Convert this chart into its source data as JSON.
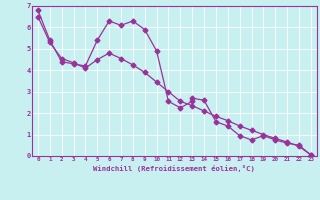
{
  "xlabel": "Windchill (Refroidissement éolien,°C)",
  "bg_color": "#c8f0f0",
  "line_color": "#993399",
  "spine_color": "#993399",
  "grid_color": "#aadddd",
  "xlim": [
    -0.5,
    23.5
  ],
  "ylim": [
    0,
    7
  ],
  "xticks": [
    0,
    1,
    2,
    3,
    4,
    5,
    6,
    7,
    8,
    9,
    10,
    11,
    12,
    13,
    14,
    15,
    16,
    17,
    18,
    19,
    20,
    21,
    22,
    23
  ],
  "yticks": [
    0,
    1,
    2,
    3,
    4,
    5,
    6,
    7
  ],
  "line1_x": [
    0,
    1,
    2,
    3,
    4,
    5,
    6,
    7,
    8,
    9,
    10,
    11,
    12,
    13
  ],
  "line1_y": [
    6.8,
    5.4,
    4.4,
    4.3,
    4.2,
    5.4,
    6.3,
    6.1,
    6.3,
    5.9,
    4.9,
    2.55,
    2.25,
    2.55
  ],
  "line2_x": [
    0,
    1,
    2,
    3,
    4,
    5,
    6,
    7,
    8,
    9,
    10,
    11,
    12,
    13,
    14,
    15,
    16,
    17,
    18,
    19,
    20,
    21,
    22,
    23
  ],
  "line2_y": [
    6.5,
    5.3,
    4.55,
    4.35,
    4.1,
    4.5,
    4.8,
    4.55,
    4.25,
    3.9,
    3.45,
    3.0,
    2.55,
    2.35,
    2.1,
    1.85,
    1.65,
    1.4,
    1.2,
    1.0,
    0.82,
    0.65,
    0.45,
    0.05
  ],
  "line3_x": [
    13,
    14,
    15,
    16,
    17,
    18,
    19,
    20,
    21,
    22,
    23
  ],
  "line3_y": [
    2.7,
    2.6,
    1.6,
    1.4,
    0.95,
    0.75,
    0.95,
    0.75,
    0.6,
    0.5,
    0.05
  ]
}
